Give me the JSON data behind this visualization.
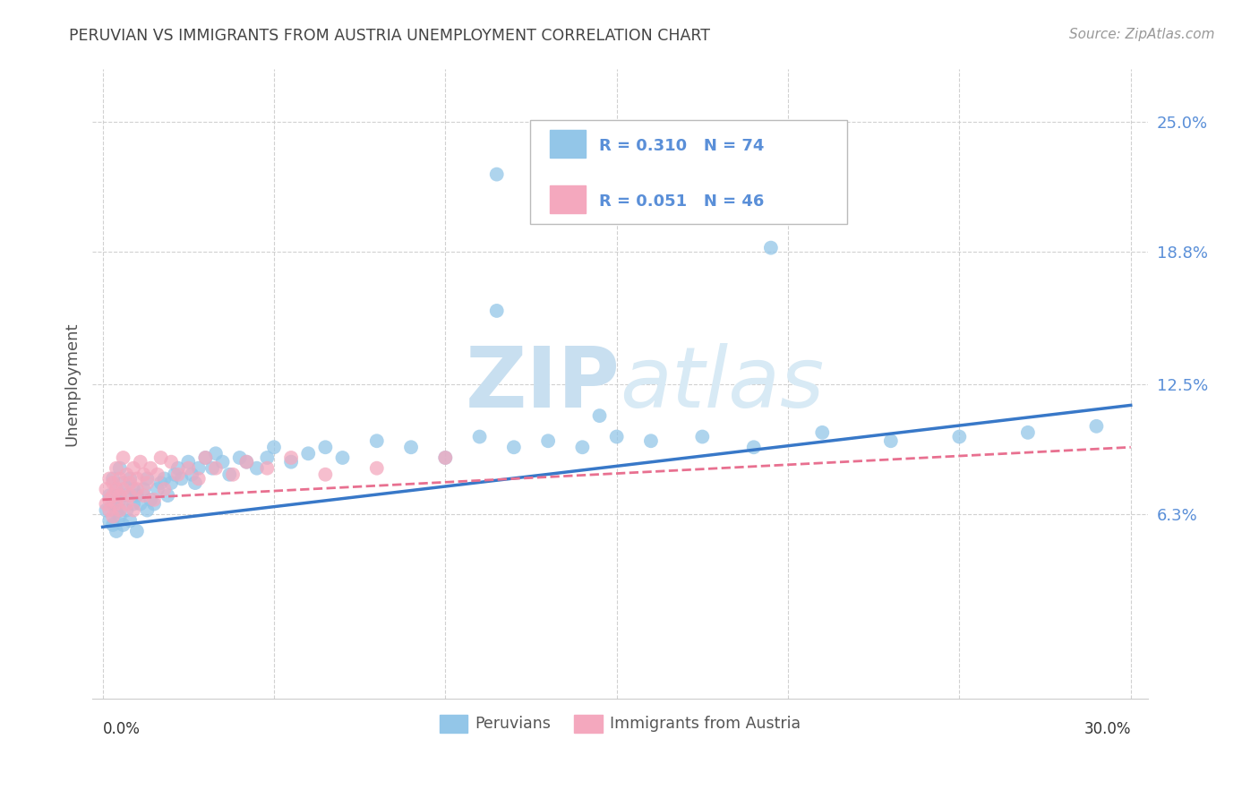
{
  "title": "PERUVIAN VS IMMIGRANTS FROM AUSTRIA UNEMPLOYMENT CORRELATION CHART",
  "source": "Source: ZipAtlas.com",
  "ylabel": "Unemployment",
  "ytick_vals": [
    0.063,
    0.125,
    0.188,
    0.25
  ],
  "ytick_labels": [
    "6.3%",
    "12.5%",
    "18.8%",
    "25.0%"
  ],
  "xlim": [
    -0.003,
    0.305
  ],
  "ylim": [
    -0.025,
    0.275
  ],
  "blue_color": "#93C6E8",
  "pink_color": "#F4A8BE",
  "blue_line_color": "#3878C8",
  "pink_line_color": "#E87090",
  "ytick_color": "#5A8FD8",
  "title_color": "#444444",
  "source_color": "#999999",
  "legend_text_color": "#5A8FD8",
  "watermark_color": "#D0E8F8",
  "blue_line_start_y": 0.057,
  "blue_line_end_y": 0.115,
  "pink_line_start_y": 0.07,
  "pink_line_end_y": 0.095,
  "blue_scatter_x": [
    0.001,
    0.002,
    0.002,
    0.003,
    0.003,
    0.003,
    0.004,
    0.004,
    0.004,
    0.005,
    0.005,
    0.005,
    0.006,
    0.006,
    0.007,
    0.007,
    0.008,
    0.008,
    0.009,
    0.009,
    0.01,
    0.01,
    0.011,
    0.012,
    0.013,
    0.013,
    0.014,
    0.015,
    0.016,
    0.017,
    0.018,
    0.019,
    0.02,
    0.021,
    0.022,
    0.023,
    0.025,
    0.026,
    0.027,
    0.028,
    0.03,
    0.032,
    0.033,
    0.035,
    0.037,
    0.04,
    0.042,
    0.045,
    0.048,
    0.05,
    0.055,
    0.06,
    0.065,
    0.07,
    0.08,
    0.09,
    0.1,
    0.11,
    0.12,
    0.13,
    0.14,
    0.15,
    0.16,
    0.175,
    0.19,
    0.21,
    0.23,
    0.25,
    0.27,
    0.29,
    0.115,
    0.195,
    0.115,
    0.145
  ],
  "blue_scatter_y": [
    0.065,
    0.072,
    0.06,
    0.068,
    0.058,
    0.08,
    0.064,
    0.075,
    0.055,
    0.07,
    0.062,
    0.085,
    0.058,
    0.078,
    0.072,
    0.065,
    0.08,
    0.06,
    0.068,
    0.075,
    0.072,
    0.055,
    0.068,
    0.075,
    0.065,
    0.08,
    0.07,
    0.068,
    0.075,
    0.078,
    0.08,
    0.072,
    0.078,
    0.082,
    0.085,
    0.08,
    0.088,
    0.082,
    0.078,
    0.085,
    0.09,
    0.085,
    0.092,
    0.088,
    0.082,
    0.09,
    0.088,
    0.085,
    0.09,
    0.095,
    0.088,
    0.092,
    0.095,
    0.09,
    0.098,
    0.095,
    0.09,
    0.1,
    0.095,
    0.098,
    0.095,
    0.1,
    0.098,
    0.1,
    0.095,
    0.102,
    0.098,
    0.1,
    0.102,
    0.105,
    0.225,
    0.19,
    0.16,
    0.11
  ],
  "pink_scatter_x": [
    0.001,
    0.001,
    0.002,
    0.002,
    0.002,
    0.003,
    0.003,
    0.003,
    0.004,
    0.004,
    0.004,
    0.005,
    0.005,
    0.005,
    0.006,
    0.006,
    0.007,
    0.007,
    0.008,
    0.008,
    0.009,
    0.009,
    0.01,
    0.01,
    0.011,
    0.012,
    0.012,
    0.013,
    0.014,
    0.015,
    0.016,
    0.017,
    0.018,
    0.02,
    0.022,
    0.025,
    0.028,
    0.03,
    0.033,
    0.038,
    0.042,
    0.048,
    0.055,
    0.065,
    0.08,
    0.1
  ],
  "pink_scatter_y": [
    0.068,
    0.075,
    0.07,
    0.08,
    0.065,
    0.072,
    0.078,
    0.062,
    0.075,
    0.068,
    0.085,
    0.072,
    0.065,
    0.08,
    0.075,
    0.09,
    0.068,
    0.082,
    0.078,
    0.072,
    0.085,
    0.065,
    0.08,
    0.075,
    0.088,
    0.072,
    0.082,
    0.078,
    0.085,
    0.07,
    0.082,
    0.09,
    0.075,
    0.088,
    0.082,
    0.085,
    0.08,
    0.09,
    0.085,
    0.082,
    0.088,
    0.085,
    0.09,
    0.082,
    0.085,
    0.09
  ]
}
